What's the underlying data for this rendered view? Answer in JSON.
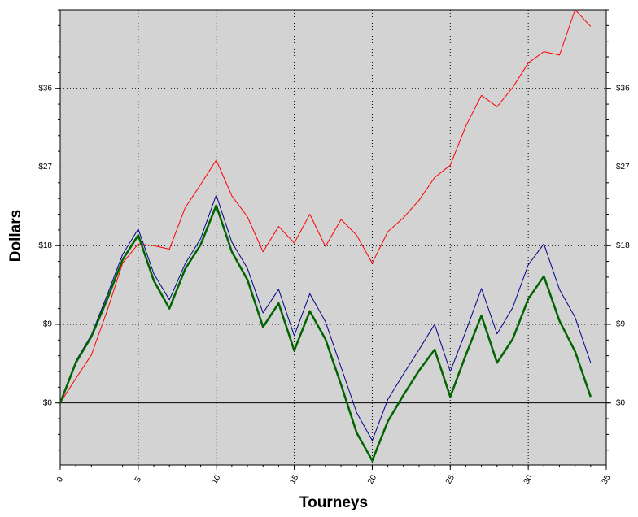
{
  "chart_data": {
    "type": "line",
    "xlabel": "Tourneys",
    "ylabel": "Dollars",
    "x": [
      0,
      1,
      2,
      3,
      4,
      5,
      6,
      7,
      8,
      9,
      10,
      11,
      12,
      13,
      14,
      15,
      16,
      17,
      18,
      19,
      20,
      21,
      22,
      23,
      24,
      25,
      26,
      27,
      28,
      29,
      30,
      31,
      32,
      33,
      34
    ],
    "series": [
      {
        "color": "#ff0000",
        "width": 1,
        "values": [
          0,
          2.8,
          5.5,
          10.5,
          16,
          18.2,
          18,
          17.6,
          22.3,
          25,
          27.8,
          23.7,
          21.3,
          17.3,
          20.2,
          18.3,
          21.6,
          17.9,
          21,
          19.2,
          16,
          19.6,
          21.2,
          23.2,
          25.8,
          27.2,
          31.7,
          35.2,
          33.9,
          36.1,
          38.9,
          40.2,
          39.8,
          45,
          43.1
        ]
      },
      {
        "color": "#00008b",
        "width": 1,
        "values": [
          0,
          4.8,
          7.8,
          12.3,
          17,
          19.9,
          14.8,
          11.8,
          15.9,
          18.8,
          23.8,
          18.4,
          15.4,
          10.3,
          13,
          7.7,
          12.5,
          9.3,
          4.1,
          -1.1,
          -4.3,
          0.4,
          3.3,
          6.1,
          9,
          3.6,
          8.2,
          13.1,
          7.9,
          10.9,
          15.8,
          18.2,
          13,
          9.8,
          4.6
        ]
      },
      {
        "color": "#006400",
        "width": 2.5,
        "values": [
          0,
          4.6,
          7.6,
          11.8,
          16.4,
          19.2,
          14,
          10.8,
          15.3,
          18.1,
          22.6,
          17.3,
          14.1,
          8.7,
          11.4,
          6,
          10.5,
          7.3,
          2.1,
          -3.4,
          -6.6,
          -2.1,
          0.9,
          3.7,
          6.1,
          0.7,
          5.5,
          10,
          4.6,
          7.3,
          11.9,
          14.5,
          9.4,
          5.9,
          0.7
        ]
      }
    ],
    "xlim": [
      0,
      35
    ],
    "xticks": [
      0,
      5,
      10,
      15,
      20,
      25,
      30,
      35
    ],
    "ylim": [
      -7.1,
      45
    ],
    "yticks": [
      {
        "value": 0,
        "label": "$0"
      },
      {
        "value": 9,
        "label": "$9"
      },
      {
        "value": 18,
        "label": "$18"
      },
      {
        "value": 27,
        "label": "$27"
      },
      {
        "value": 36,
        "label": "$36"
      }
    ],
    "grid": true
  }
}
